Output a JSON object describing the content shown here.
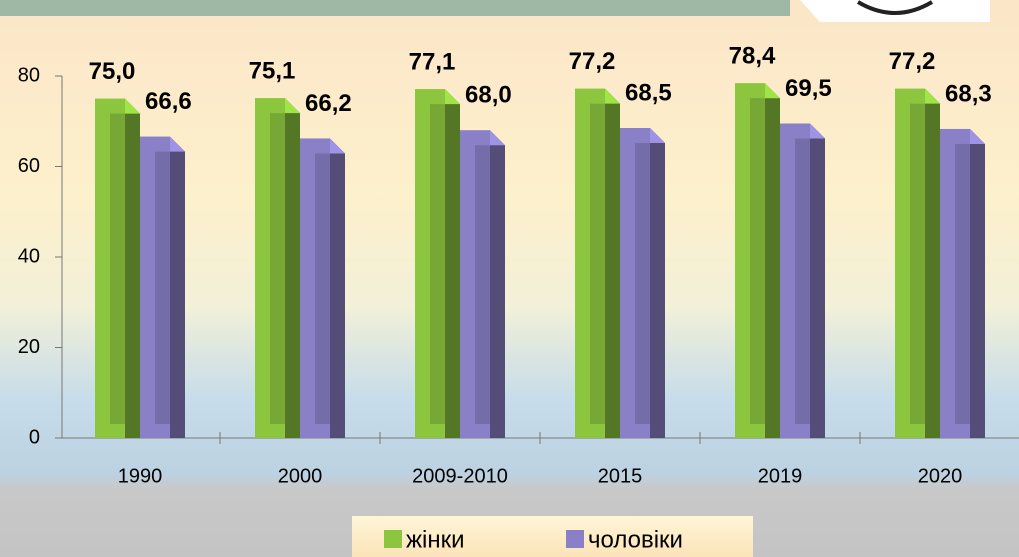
{
  "chart_data": {
    "type": "bar3d",
    "categories": [
      "1990",
      "2000",
      "2009-2010",
      "2015",
      "2019",
      "2020"
    ],
    "series": [
      {
        "name": "жінки",
        "color": "#8cc63f",
        "values": [
          75.0,
          75.1,
          77.1,
          77.2,
          78.4,
          77.2
        ],
        "value_labels": [
          "75,0",
          "75,1",
          "77,1",
          "77,2",
          "78,4",
          "77,2"
        ]
      },
      {
        "name": "чоловіки",
        "color": "#8a80c8",
        "values": [
          66.6,
          66.2,
          68.0,
          68.5,
          69.5,
          68.3
        ],
        "value_labels": [
          "66,6",
          "66,2",
          "68,0",
          "68,5",
          "69,5",
          "68,3"
        ]
      }
    ],
    "ylim": [
      0,
      80
    ],
    "yticks": [
      0,
      20,
      40,
      60,
      80
    ],
    "legend": "bottom"
  }
}
